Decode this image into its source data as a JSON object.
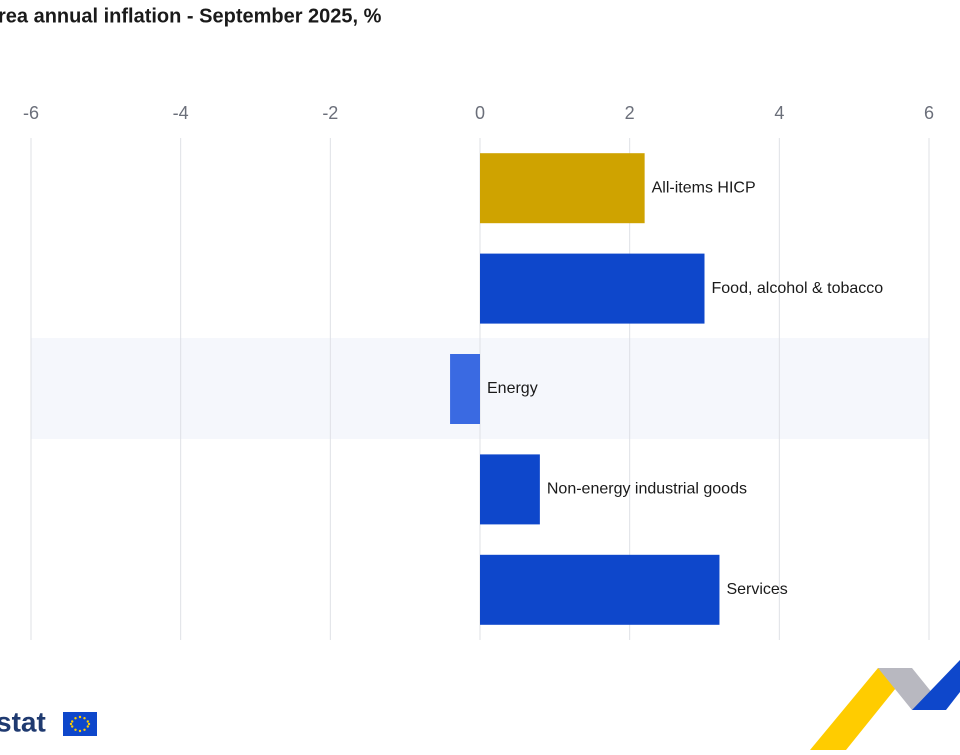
{
  "chart_data": {
    "type": "bar",
    "orientation": "horizontal",
    "title": "rea annual inflation - September 2025, %",
    "categories": [
      "All-items HICP",
      "Food, alcohol & tobacco",
      "Energy",
      "Non-energy industrial goods",
      "Services"
    ],
    "values": [
      2.2,
      3.0,
      -0.4,
      0.8,
      3.2
    ],
    "colors": [
      "#cfa300",
      "#0e47cb",
      "#3a6ae2",
      "#0e47cb",
      "#0e47cb"
    ],
    "xlim": [
      -6,
      6
    ],
    "xticks": [
      -6,
      -4,
      -2,
      0,
      2,
      4,
      6
    ],
    "grid": true
  },
  "footer": {
    "logo": "stat"
  }
}
